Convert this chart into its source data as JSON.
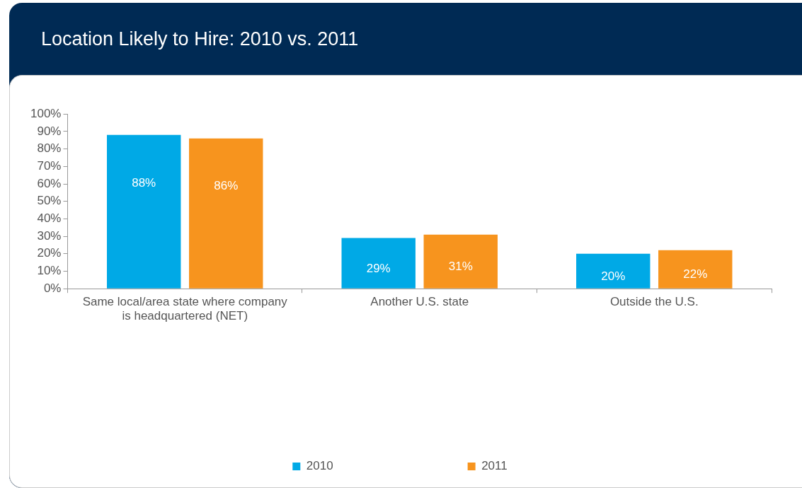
{
  "chart_data": {
    "type": "bar",
    "title": "Location Likely to Hire: 2010 vs. 2011",
    "categories": [
      "Same local/area state where company is headquartered (NET)",
      "Another U.S. state",
      "Outside the U.S."
    ],
    "series": [
      {
        "name": "2010",
        "color": "#00a9e6",
        "values": [
          88,
          29,
          20
        ],
        "value_labels": [
          "88%",
          "29%",
          "20%"
        ]
      },
      {
        "name": "2011",
        "color": "#f7941e",
        "values": [
          86,
          31,
          22
        ],
        "value_labels": [
          "86%",
          "31%",
          "22%"
        ]
      }
    ],
    "ylim": [
      0,
      100
    ],
    "yticks": [
      {
        "value": 0,
        "label": "0%"
      },
      {
        "value": 10,
        "label": "10%"
      },
      {
        "value": 20,
        "label": "20%"
      },
      {
        "value": 30,
        "label": "30%"
      },
      {
        "value": 40,
        "label": "40%"
      },
      {
        "value": 50,
        "label": "50%"
      },
      {
        "value": 60,
        "label": "60%"
      },
      {
        "value": 70,
        "label": "70%"
      },
      {
        "value": 80,
        "label": "80%"
      },
      {
        "value": 90,
        "label": "90%"
      },
      {
        "value": 100,
        "label": "100%"
      }
    ],
    "grid": false,
    "legend": "bottom"
  }
}
